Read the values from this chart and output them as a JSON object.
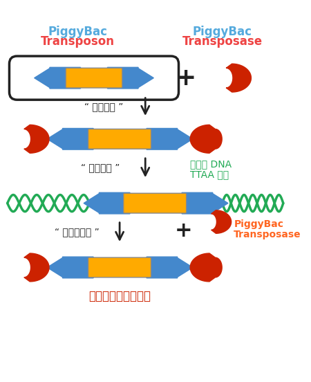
{
  "bg_color": "#ffffff",
  "blue": "#4488cc",
  "orange": "#ffaa00",
  "red": "#cc2200",
  "green": "#22aa55",
  "black": "#222222",
  "label_transposon_color": "#55aadd",
  "label_transposase_color": "#ee4444",
  "label_transposase2_color": "#ff6622",
  "label1_line1": "PiggyBac",
  "label1_line2": "Transposon",
  "label2_line1": "PiggyBac",
  "label2_line2": "Transposase",
  "step1_label": "“ 切り出し ”",
  "step2_label": "“ 組み込み ”",
  "step2_right1": "ゲノム DNA",
  "step2_right2": "TTAA 部位",
  "step3_label": "“ 再切り出し ”",
  "step3_right1": "PiggyBac",
  "step3_right2": "Transposase",
  "bottom_label": "痕跡を残さずに除去",
  "figsize": [
    4.5,
    5.52
  ],
  "dpi": 100
}
